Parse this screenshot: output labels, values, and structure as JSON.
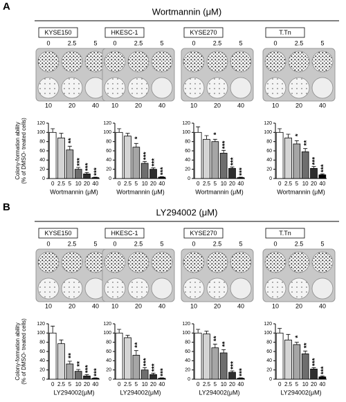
{
  "panels": [
    {
      "label": "A",
      "title": "Wortmannin (μM)",
      "cell_lines": [
        "KYSE150",
        "HKESC-1",
        "KYSE270",
        "T.Tn"
      ],
      "plate_doses_top": [
        "0",
        "2.5",
        "5"
      ],
      "plate_doses_bottom": [
        "10",
        "20",
        "40"
      ]
    },
    {
      "label": "B",
      "title": "LY294002  (μM)",
      "cell_lines": [
        "KYSE150",
        "HKESC-1",
        "KYSE270",
        "T.Tn"
      ],
      "plate_doses_top": [
        "0",
        "2.5",
        "5"
      ],
      "plate_doses_bottom": [
        "10",
        "20",
        "40"
      ]
    }
  ],
  "chart_data": [
    {
      "type": "bar",
      "ylabel": [
        "Colony-formation ability",
        "(% of DMSO- treated cells)"
      ],
      "xlabel": "Wortmannin (μM)",
      "categories": [
        "0",
        "2.5",
        "5",
        "10",
        "20",
        "40"
      ],
      "values": [
        100,
        88,
        62,
        20,
        10,
        2
      ],
      "errors": [
        8,
        10,
        8,
        4,
        3,
        1
      ],
      "annotations": [
        null,
        null,
        "**",
        "***",
        "***",
        "***"
      ],
      "colors": [
        "#ffffff",
        "#d4d4d4",
        "#a6a6a6",
        "#6e6e6e",
        "#2e2e2e",
        "#000000"
      ],
      "ylim": [
        0,
        120
      ],
      "yticks": [
        0,
        20,
        40,
        60,
        80,
        100,
        120
      ]
    },
    {
      "type": "bar",
      "xlabel": "Wortmannin (μM)",
      "categories": [
        "0",
        "2.5",
        "5",
        "10",
        "20",
        "40"
      ],
      "values": [
        100,
        92,
        68,
        33,
        20,
        3
      ],
      "errors": [
        8,
        6,
        8,
        4,
        3,
        1
      ],
      "annotations": [
        null,
        null,
        "*",
        "***",
        "***",
        "***"
      ],
      "colors": [
        "#ffffff",
        "#d4d4d4",
        "#a6a6a6",
        "#6e6e6e",
        "#2e2e2e",
        "#000000"
      ],
      "ylim": [
        0,
        120
      ],
      "yticks": [
        0,
        20,
        40,
        60,
        80,
        100,
        120
      ]
    },
    {
      "type": "bar",
      "xlabel": "Wortmannin (μM)",
      "categories": [
        "0",
        "2.5",
        "5",
        "10",
        "20",
        "40"
      ],
      "values": [
        100,
        85,
        80,
        55,
        22,
        2
      ],
      "errors": [
        12,
        8,
        5,
        6,
        3,
        1
      ],
      "annotations": [
        null,
        null,
        "*",
        "***",
        "***",
        "***"
      ],
      "colors": [
        "#ffffff",
        "#d4d4d4",
        "#a6a6a6",
        "#6e6e6e",
        "#2e2e2e",
        "#000000"
      ],
      "ylim": [
        0,
        120
      ],
      "yticks": [
        0,
        20,
        40,
        60,
        80,
        100,
        120
      ]
    },
    {
      "type": "bar",
      "xlabel": "Wortmannin (μM)",
      "categories": [
        "0",
        "2.5",
        "5",
        "10",
        "20",
        "40"
      ],
      "values": [
        100,
        88,
        75,
        58,
        22,
        8
      ],
      "errors": [
        8,
        8,
        7,
        7,
        4,
        2
      ],
      "annotations": [
        null,
        null,
        "*",
        "**",
        "***",
        "***"
      ],
      "colors": [
        "#ffffff",
        "#d4d4d4",
        "#a6a6a6",
        "#6e6e6e",
        "#2e2e2e",
        "#000000"
      ],
      "ylim": [
        0,
        120
      ],
      "yticks": [
        0,
        20,
        40,
        60,
        80,
        100,
        120
      ]
    },
    {
      "type": "bar",
      "ylabel": [
        "Colony-formation ability",
        "(% of DMSO- treated cells)"
      ],
      "xlabel": "LY294002(μM)",
      "categories": [
        "0",
        "2.5",
        "5",
        "10",
        "20",
        "40"
      ],
      "values": [
        100,
        77,
        33,
        17,
        7,
        2
      ],
      "errors": [
        15,
        8,
        6,
        4,
        3,
        1
      ],
      "annotations": [
        null,
        null,
        "**",
        "**",
        "***",
        "***"
      ],
      "colors": [
        "#ffffff",
        "#d4d4d4",
        "#a6a6a6",
        "#6e6e6e",
        "#2e2e2e",
        "#000000"
      ],
      "ylim": [
        0,
        120
      ],
      "yticks": [
        0,
        20,
        40,
        60,
        80,
        100,
        120
      ]
    },
    {
      "type": "bar",
      "xlabel": "LY294002(μM)",
      "categories": [
        "0",
        "2.5",
        "5",
        "10",
        "20",
        "40"
      ],
      "values": [
        100,
        90,
        52,
        20,
        10,
        2
      ],
      "errors": [
        8,
        5,
        10,
        5,
        3,
        1
      ],
      "annotations": [
        null,
        null,
        "**",
        "***",
        "***",
        "***"
      ],
      "colors": [
        "#ffffff",
        "#d4d4d4",
        "#a6a6a6",
        "#6e6e6e",
        "#2e2e2e",
        "#000000"
      ],
      "ylim": [
        0,
        120
      ],
      "yticks": [
        0,
        20,
        40,
        60,
        80,
        100,
        120
      ]
    },
    {
      "type": "bar",
      "xlabel": "LY294002(μM)",
      "categories": [
        "0",
        "2.5",
        "5",
        "10",
        "20",
        "40"
      ],
      "values": [
        100,
        98,
        68,
        57,
        15,
        2
      ],
      "errors": [
        8,
        6,
        8,
        7,
        3,
        1
      ],
      "annotations": [
        null,
        null,
        "**",
        "**",
        "***",
        "***"
      ],
      "colors": [
        "#ffffff",
        "#d4d4d4",
        "#a6a6a6",
        "#6e6e6e",
        "#2e2e2e",
        "#000000"
      ],
      "ylim": [
        0,
        120
      ],
      "yticks": [
        0,
        20,
        40,
        60,
        80,
        100,
        120
      ]
    },
    {
      "type": "bar",
      "xlabel": "LY294002(μM)",
      "categories": [
        "0",
        "2.5",
        "5",
        "10",
        "20",
        "40"
      ],
      "values": [
        100,
        85,
        75,
        55,
        22,
        5
      ],
      "errors": [
        10,
        12,
        5,
        6,
        3,
        2
      ],
      "annotations": [
        null,
        null,
        "*",
        "**",
        "***",
        "***"
      ],
      "colors": [
        "#ffffff",
        "#d4d4d4",
        "#a6a6a6",
        "#6e6e6e",
        "#2e2e2e",
        "#000000"
      ],
      "ylim": [
        0,
        120
      ],
      "yticks": [
        0,
        20,
        40,
        60,
        80,
        100,
        120
      ]
    }
  ]
}
